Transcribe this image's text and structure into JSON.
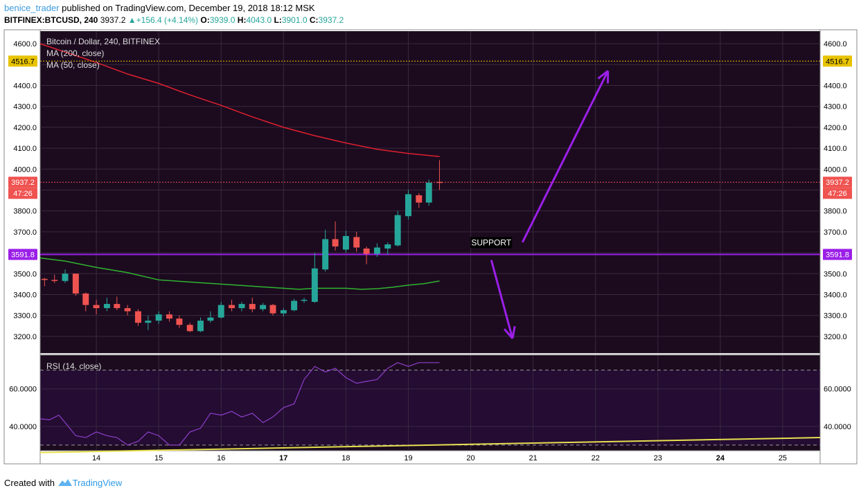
{
  "header": {
    "user": "benice_trader",
    "published": "published on TradingView.com, December 19, 2018 18:12 MSK",
    "symbol": "BITFINEX:BTCUSD, 240",
    "price": "3937.2",
    "change_symbol": "▲",
    "change": "+156.4 (+4.14%)",
    "o_label": "O:",
    "o_value": "3939.0",
    "h_label": "H:",
    "h_value": "4043.0",
    "l_label": "L:",
    "l_value": "3901.0",
    "c_label": "C:",
    "c_value": "3937.2"
  },
  "legend": {
    "title": "Bitcoin / Dollar, 240, BITFINEX",
    "ma200": "MA (200, close)",
    "ma50": "MA (50, close)",
    "rsi": "RSI (14, close)"
  },
  "annotation": {
    "support": "SUPPORT"
  },
  "footer": {
    "created": "Created with",
    "brand": "TradingView"
  },
  "colors": {
    "background": "#1c0b1f",
    "bull": "#26a69a",
    "bear": "#ef5350",
    "ma200": "#e0202e",
    "ma50": "#2fb52f",
    "support": "#9b1fe8",
    "rsi": "#8e3fc9",
    "trend": "#e8e050",
    "dotted_level": "#e8c300"
  },
  "chart_data": [
    {
      "type": "candlestick",
      "title": "Bitcoin / Dollar, 240, BITFINEX",
      "ylim": [
        3120,
        4660
      ],
      "y_ticks": [
        3200,
        3300,
        3400,
        3500,
        3600,
        3700,
        3800,
        3900,
        4000,
        4100,
        4200,
        4300,
        4400,
        4500,
        4600
      ],
      "y_tick_labels": [
        "3200.0",
        "3300.0",
        "3400.0",
        "3500.0",
        "",
        "3700.0",
        "3800.0",
        "",
        "4000.0",
        "4100.0",
        "4200.0",
        "4300.0",
        "4400.0",
        "",
        "4600.0"
      ],
      "x_range": [
        13.1,
        25.6
      ],
      "x_ticks": [
        14,
        15,
        16,
        17,
        18,
        19,
        20,
        21,
        22,
        23,
        24,
        25
      ],
      "x_tick_labels": [
        "14",
        "15",
        "16",
        "17",
        "18",
        "19",
        "20",
        "21",
        "22",
        "23",
        "24",
        "25"
      ],
      "bold_x_ticks": [
        "17",
        "24"
      ],
      "candles": [
        {
          "x": 13.17,
          "o": 3475,
          "h": 3480,
          "l": 3440,
          "c": 3470
        },
        {
          "x": 13.33,
          "o": 3470,
          "h": 3495,
          "l": 3455,
          "c": 3465
        },
        {
          "x": 13.5,
          "o": 3465,
          "h": 3520,
          "l": 3455,
          "c": 3500
        },
        {
          "x": 13.67,
          "o": 3500,
          "h": 3500,
          "l": 3395,
          "c": 3405
        },
        {
          "x": 13.83,
          "o": 3405,
          "h": 3410,
          "l": 3320,
          "c": 3350
        },
        {
          "x": 14.0,
          "o": 3350,
          "h": 3375,
          "l": 3305,
          "c": 3335
        },
        {
          "x": 14.17,
          "o": 3335,
          "h": 3385,
          "l": 3320,
          "c": 3355
        },
        {
          "x": 14.33,
          "o": 3355,
          "h": 3390,
          "l": 3325,
          "c": 3335
        },
        {
          "x": 14.5,
          "o": 3335,
          "h": 3350,
          "l": 3300,
          "c": 3320
        },
        {
          "x": 14.67,
          "o": 3320,
          "h": 3330,
          "l": 3250,
          "c": 3265
        },
        {
          "x": 14.83,
          "o": 3265,
          "h": 3300,
          "l": 3230,
          "c": 3275
        },
        {
          "x": 15.0,
          "o": 3275,
          "h": 3320,
          "l": 3260,
          "c": 3305
        },
        {
          "x": 15.17,
          "o": 3305,
          "h": 3320,
          "l": 3270,
          "c": 3285
        },
        {
          "x": 15.33,
          "o": 3285,
          "h": 3300,
          "l": 3240,
          "c": 3255
        },
        {
          "x": 15.5,
          "o": 3255,
          "h": 3265,
          "l": 3220,
          "c": 3225
        },
        {
          "x": 15.67,
          "o": 3225,
          "h": 3290,
          "l": 3220,
          "c": 3275
        },
        {
          "x": 15.83,
          "o": 3275,
          "h": 3320,
          "l": 3265,
          "c": 3290
        },
        {
          "x": 16.0,
          "o": 3290,
          "h": 3365,
          "l": 3285,
          "c": 3350
        },
        {
          "x": 16.17,
          "o": 3350,
          "h": 3375,
          "l": 3320,
          "c": 3335
        },
        {
          "x": 16.33,
          "o": 3335,
          "h": 3365,
          "l": 3320,
          "c": 3355
        },
        {
          "x": 16.5,
          "o": 3355,
          "h": 3385,
          "l": 3315,
          "c": 3330
        },
        {
          "x": 16.67,
          "o": 3330,
          "h": 3360,
          "l": 3320,
          "c": 3350
        },
        {
          "x": 16.83,
          "o": 3350,
          "h": 3355,
          "l": 3300,
          "c": 3310
        },
        {
          "x": 17.0,
          "o": 3310,
          "h": 3335,
          "l": 3295,
          "c": 3325
        },
        {
          "x": 17.17,
          "o": 3325,
          "h": 3380,
          "l": 3320,
          "c": 3370
        },
        {
          "x": 17.33,
          "o": 3370,
          "h": 3385,
          "l": 3360,
          "c": 3375
        },
        {
          "x": 17.5,
          "o": 3365,
          "h": 3600,
          "l": 3360,
          "c": 3525
        },
        {
          "x": 17.67,
          "o": 3520,
          "h": 3710,
          "l": 3510,
          "c": 3665
        },
        {
          "x": 17.83,
          "o": 3665,
          "h": 3750,
          "l": 3610,
          "c": 3630
        },
        {
          "x": 18.0,
          "o": 3615,
          "h": 3705,
          "l": 3600,
          "c": 3680
        },
        {
          "x": 18.17,
          "o": 3675,
          "h": 3700,
          "l": 3605,
          "c": 3625
        },
        {
          "x": 18.33,
          "o": 3620,
          "h": 3630,
          "l": 3545,
          "c": 3595
        },
        {
          "x": 18.5,
          "o": 3595,
          "h": 3645,
          "l": 3580,
          "c": 3625
        },
        {
          "x": 18.67,
          "o": 3620,
          "h": 3650,
          "l": 3590,
          "c": 3640
        },
        {
          "x": 18.83,
          "o": 3635,
          "h": 3800,
          "l": 3630,
          "c": 3780
        },
        {
          "x": 19.0,
          "o": 3775,
          "h": 3900,
          "l": 3760,
          "c": 3880
        },
        {
          "x": 19.17,
          "o": 3875,
          "h": 3885,
          "l": 3815,
          "c": 3840
        },
        {
          "x": 19.33,
          "o": 3840,
          "h": 3950,
          "l": 3825,
          "c": 3935
        },
        {
          "x": 19.5,
          "o": 3939,
          "h": 4043,
          "l": 3901,
          "c": 3937.2
        }
      ],
      "ma200": {
        "x": [
          13.1,
          13.5,
          14.0,
          14.5,
          15.0,
          15.5,
          16.0,
          16.5,
          17.0,
          17.5,
          18.0,
          18.5,
          19.0,
          19.5
        ],
        "y": [
          4600,
          4560,
          4510,
          4455,
          4410,
          4355,
          4305,
          4250,
          4200,
          4160,
          4125,
          4095,
          4075,
          4060
        ]
      },
      "ma50": {
        "x": [
          13.1,
          13.5,
          14.0,
          14.5,
          15.0,
          15.5,
          16.0,
          16.5,
          17.0,
          17.25,
          17.5,
          18.0,
          18.25,
          18.5,
          18.75,
          19.0,
          19.25,
          19.5
        ],
        "y": [
          3575,
          3560,
          3530,
          3505,
          3470,
          3460,
          3450,
          3440,
          3430,
          3425,
          3430,
          3430,
          3425,
          3428,
          3435,
          3445,
          3452,
          3465
        ]
      },
      "levels": [
        {
          "value": 4516.7,
          "label": "4516.7",
          "style": "dotted",
          "color": "#e8c300"
        },
        {
          "value": 3937.2,
          "label": "3937.2",
          "sub_label": "47:26",
          "style": "dotted",
          "color": "#ef5350"
        },
        {
          "value": 3591.8,
          "label": "3591.8",
          "style": "solid",
          "color": "#9b1fe8"
        }
      ],
      "arrows": [
        {
          "from": [
            20.83,
            3650
          ],
          "to": [
            22.2,
            4470
          ]
        },
        {
          "from": [
            20.33,
            3565
          ],
          "to": [
            20.67,
            3190
          ]
        }
      ]
    },
    {
      "type": "line",
      "title": "RSI (14, close)",
      "ylim": [
        27,
        78
      ],
      "y_ticks": [
        40,
        60
      ],
      "y_tick_labels": [
        "40.0000",
        "60.0000"
      ],
      "bands": [
        30,
        70
      ],
      "series": [
        {
          "x": [
            13.1,
            13.25,
            13.4,
            13.5,
            13.67,
            13.83,
            14.0,
            14.17,
            14.33,
            14.5,
            14.67,
            14.83,
            15.0,
            15.17,
            15.33,
            15.5,
            15.67,
            15.83,
            16.0,
            16.17,
            16.33,
            16.5,
            16.67,
            16.83,
            17.0,
            17.17,
            17.33,
            17.5,
            17.67,
            17.83,
            18.0,
            18.17,
            18.33,
            18.5,
            18.67,
            18.83,
            19.0,
            19.17,
            19.33,
            19.5
          ],
          "y": [
            44,
            43.5,
            46,
            42,
            35,
            34,
            37,
            35,
            34,
            30,
            32,
            37,
            35,
            30,
            30,
            37,
            39,
            47,
            46,
            48,
            45,
            47,
            42,
            45,
            50,
            52,
            65,
            72,
            69,
            71,
            66,
            63,
            64,
            65,
            71,
            74,
            72,
            74,
            74,
            74
          ]
        },
        {
          "x": [
            13.1,
            25.6
          ],
          "y": [
            26,
            34
          ]
        }
      ]
    }
  ]
}
